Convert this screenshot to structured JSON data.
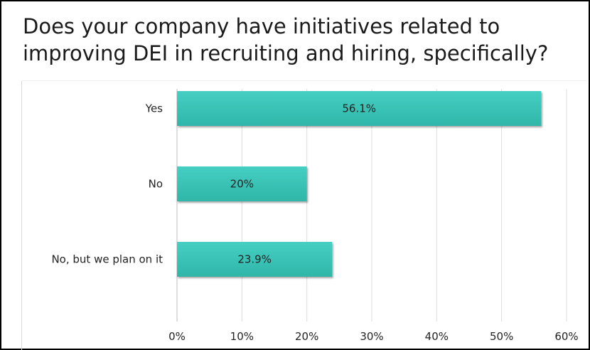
{
  "chart_data": {
    "type": "bar",
    "orientation": "horizontal",
    "title": "Does your company have initiatives related to improving DEI in recruiting and hiring, specifically?",
    "categories": [
      "Yes",
      "No",
      "No, but we plan on it"
    ],
    "values": [
      56.1,
      20,
      23.9
    ],
    "value_labels": [
      "56.1%",
      "20%",
      "23.9%"
    ],
    "xlim": [
      0,
      60
    ],
    "x_ticks": [
      0,
      10,
      20,
      30,
      40,
      50,
      60
    ],
    "x_tick_labels": [
      "0%",
      "10%",
      "20%",
      "30%",
      "40%",
      "50%",
      "60%"
    ],
    "grid": true,
    "legend": "none",
    "colors": {
      "bar": "#3cc4b7",
      "bar_shadow": "#9a9a9a",
      "grid": "#dcdcdc",
      "text": "#222222"
    }
  }
}
